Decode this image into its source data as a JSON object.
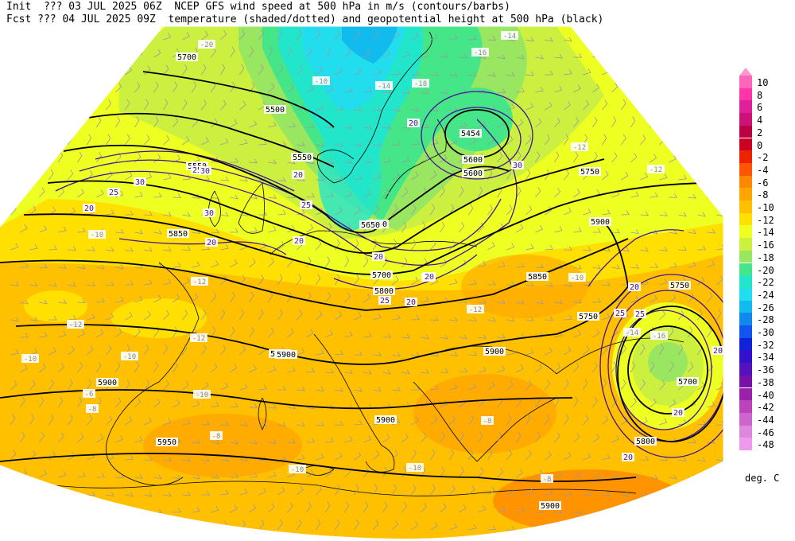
{
  "header": {
    "line1": "Init  ??? 03 JUL 2025 06Z  NCEP GFS wind speed at 500 hPa in m/s (contours/barbs)",
    "line2": "Fcst ??? 04 JUL 2025 09Z  temperature (shaded/dotted) and geopotential height at 500 hPa (black)"
  },
  "legend": {
    "units": "deg. C",
    "top_arrow_color": "#ff99cc",
    "bins": [
      {
        "label": "10",
        "color": "#ff66bb"
      },
      {
        "label": "8",
        "color": "#ff33aa"
      },
      {
        "label": "6",
        "color": "#dd2299"
      },
      {
        "label": "4",
        "color": "#cc1177"
      },
      {
        "label": "2",
        "color": "#bb0044"
      },
      {
        "label": "0",
        "color": "#cc0022"
      },
      {
        "label": "-2",
        "color": "#ee2200"
      },
      {
        "label": "-4",
        "color": "#ff5500"
      },
      {
        "label": "-6",
        "color": "#ff8800"
      },
      {
        "label": "-8",
        "color": "#ffa500"
      },
      {
        "label": "-10",
        "color": "#ffc000"
      },
      {
        "label": "-12",
        "color": "#ffe000"
      },
      {
        "label": "-14",
        "color": "#eeff22"
      },
      {
        "label": "-16",
        "color": "#ccf040"
      },
      {
        "label": "-18",
        "color": "#99e660"
      },
      {
        "label": "-20",
        "color": "#44e688"
      },
      {
        "label": "-22",
        "color": "#22e6cc"
      },
      {
        "label": "-24",
        "color": "#22ddee"
      },
      {
        "label": "-26",
        "color": "#11bbee"
      },
      {
        "label": "-28",
        "color": "#1188ee"
      },
      {
        "label": "-30",
        "color": "#1155ee"
      },
      {
        "label": "-32",
        "color": "#1122dd"
      },
      {
        "label": "-34",
        "color": "#3311cc"
      },
      {
        "label": "-36",
        "color": "#5511bb"
      },
      {
        "label": "-38",
        "color": "#7711aa"
      },
      {
        "label": "-40",
        "color": "#9922aa"
      },
      {
        "label": "-42",
        "color": "#bb44bb"
      },
      {
        "label": "-44",
        "color": "#cc66cc"
      },
      {
        "label": "-46",
        "color": "#dd88dd"
      },
      {
        "label": "-48",
        "color": "#ee99ee"
      }
    ]
  },
  "map": {
    "height_labels": [
      "5500",
      "5550",
      "5600",
      "5650",
      "5700",
      "5750",
      "5800",
      "5850",
      "5900",
      "5950",
      "5454",
      "5600",
      "5550",
      "5750",
      "5900",
      "5900",
      "5900",
      "5850",
      "5800",
      "5900",
      "5900",
      "5750",
      "5700",
      "5950",
      "5650",
      "5700"
    ],
    "wind_labels": [
      "20",
      "25",
      "30",
      "20",
      "25",
      "30",
      "20",
      "25",
      "20",
      "25",
      "30",
      "20",
      "20",
      "25",
      "20",
      "30",
      "20",
      "20",
      "25",
      "20",
      "20",
      "20",
      "20"
    ],
    "temp_labels": [
      "-20",
      "-16",
      "-18",
      "-14",
      "-12",
      "-12",
      "-10",
      "-10",
      "-12",
      "-10",
      "-12",
      "-10",
      "-8",
      "-8",
      "-10",
      "-8",
      "-10",
      "-12",
      "-16",
      "-14",
      "-12",
      "-10",
      "-8",
      "-6",
      "-10",
      "-14"
    ]
  },
  "colors": {
    "height_contour": "#000000",
    "wind_contour": "#441199",
    "barb": "#999999",
    "coastline": "#000000"
  }
}
